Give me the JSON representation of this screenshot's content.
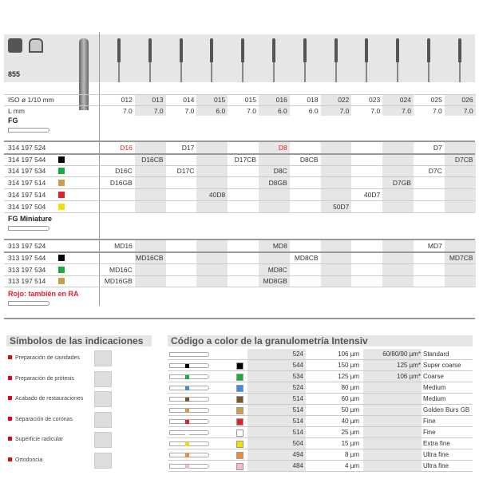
{
  "product": {
    "code": "855",
    "indication_icons": [
      "cavity-preparation-icon",
      "crown-preparation-icon"
    ]
  },
  "header_rows": {
    "iso_label": "ISO ø 1/10 mm",
    "l_label": "L mm",
    "iso": [
      "012",
      "013",
      "014",
      "015",
      "015",
      "016",
      "018",
      "022",
      "023",
      "024",
      "025",
      "026"
    ],
    "l": [
      "7.0",
      "7.0",
      "7.0",
      "6.0",
      "7.0",
      "6.0",
      "6.0",
      "7.0",
      "7.0",
      "7.0",
      "7.0",
      "7.0"
    ]
  },
  "sections": [
    {
      "title": "FG",
      "title_color": "#222",
      "rows": [
        {
          "ref": "314 197 524",
          "swatch": "",
          "cells": [
            [
              "D16",
              0,
              "red"
            ],
            [
              "D17",
              2
            ],
            [
              "D8",
              5,
              "red"
            ],
            [
              "D7",
              10
            ]
          ]
        },
        {
          "ref": "314 197 544",
          "swatch": "#000000",
          "cells": [
            [
              "D16CB",
              1
            ],
            [
              "D17CB",
              4
            ],
            [
              "D8CB",
              6
            ],
            [
              "D7CB",
              11
            ]
          ]
        },
        {
          "ref": "314 197 534",
          "swatch": "#1aab3c",
          "cells": [
            [
              "D16C",
              0
            ],
            [
              "D17C",
              2
            ],
            [
              "D8C",
              5
            ],
            [
              "D7C",
              10
            ]
          ]
        },
        {
          "ref": "314 197 514",
          "swatch": "#c9a04a",
          "cells": [
            [
              "D16GB",
              0
            ],
            [
              "D8GB",
              5
            ],
            [
              "D7GB",
              9
            ]
          ]
        },
        {
          "ref": "314 197 514",
          "swatch": "#e3202a",
          "cells": [
            [
              "40D8",
              3
            ],
            [
              "40D7",
              8
            ]
          ]
        },
        {
          "ref": "314 197 504",
          "swatch": "#f5e000",
          "cells": [
            [
              "50D7",
              7
            ]
          ]
        }
      ]
    },
    {
      "title": "FG Miniature",
      "title_color": "#222",
      "rows": [
        {
          "ref": "313 197 524",
          "swatch": "",
          "cells": [
            [
              "MD16",
              0
            ],
            [
              "MD8",
              5
            ],
            [
              "MD7",
              10
            ]
          ]
        },
        {
          "ref": "313 197 544",
          "swatch": "#000000",
          "cells": [
            [
              "MD16CB",
              1
            ],
            [
              "MD8CB",
              6
            ],
            [
              "MD7CB",
              11
            ]
          ]
        },
        {
          "ref": "313 197 534",
          "swatch": "#1aab3c",
          "cells": [
            [
              "MD16C",
              0
            ],
            [
              "MD8C",
              5
            ]
          ]
        },
        {
          "ref": "313 197 514",
          "swatch": "#c9a04a",
          "cells": [
            [
              "MD16GB",
              0
            ],
            [
              "MD8GB",
              5
            ]
          ]
        }
      ]
    },
    {
      "title": "Rojo: también en RA",
      "title_color": "#e3202a",
      "rows": []
    }
  ],
  "colors": {
    "red_text": "#e3202a",
    "shade": "#e6e6e6",
    "bullet": "#e30613"
  },
  "indications": {
    "title": "Símbolos de las indicaciones",
    "items": [
      {
        "label": "Preparación de cavidades",
        "icon": "cavity-preparation-icon"
      },
      {
        "label": "Preparación de prótesis",
        "icon": "crown-preparation-icon"
      },
      {
        "label": "Acabado de restauraciones",
        "icon": "restoration-finishing-icon"
      },
      {
        "label": "Separación de coronas",
        "icon": "crown-separation-icon"
      },
      {
        "label": "Superficie radicular",
        "icon": "root-surface-icon"
      },
      {
        "label": "Ortodoncia",
        "icon": "orthodontics-icon"
      }
    ]
  },
  "granulometry": {
    "title": "Código a color de la granulometría Intensiv",
    "rows": [
      {
        "swatch": "",
        "code": "524",
        "size": "106 µm",
        "alt": "60/80/90 µm*",
        "name": "Standard"
      },
      {
        "swatch": "#000000",
        "code": "544",
        "size": "150 µm",
        "alt": "125 µm*",
        "name": "Super coarse"
      },
      {
        "swatch": "#1aab3c",
        "code": "534",
        "size": "125 µm",
        "alt": "106 µm*",
        "name": "Coarse"
      },
      {
        "swatch": "#3b8fd9",
        "code": "524",
        "size": "80 µm",
        "alt": "",
        "name": "Medium"
      },
      {
        "swatch": "#7a5530",
        "code": "514",
        "size": "60 µm",
        "alt": "",
        "name": "Medium"
      },
      {
        "swatch": "#c9a04a",
        "code": "514",
        "size": "50 µm",
        "alt": "",
        "name": "Golden Burs GB"
      },
      {
        "swatch": "#e3202a",
        "code": "514",
        "size": "40 µm",
        "alt": "",
        "name": "Fine"
      },
      {
        "swatch": "#ffffff",
        "code": "514",
        "size": "25 µm",
        "alt": "",
        "name": "Fine"
      },
      {
        "swatch": "#f5e000",
        "code": "504",
        "size": "15 µm",
        "alt": "",
        "name": "Extra fine"
      },
      {
        "swatch": "#ef8a3a",
        "code": "494",
        "size": "8 µm",
        "alt": "",
        "name": "Ultra fine"
      },
      {
        "swatch": "#f5b8cf",
        "code": "484",
        "size": "4 µm",
        "alt": "",
        "name": "Ultra fine"
      }
    ]
  }
}
